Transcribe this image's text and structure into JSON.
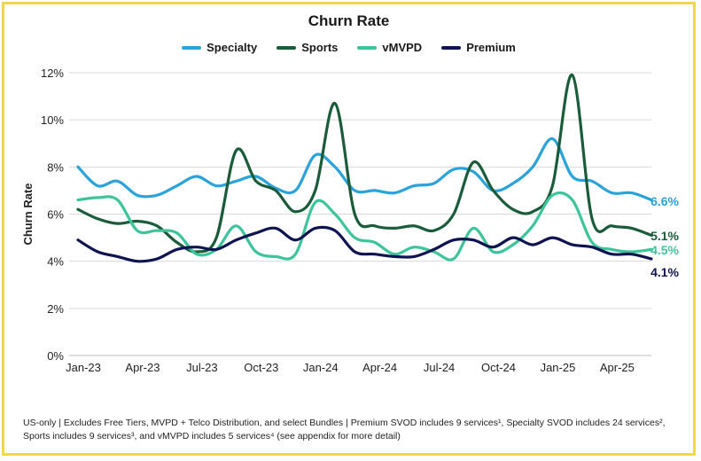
{
  "chart_data": {
    "type": "line",
    "title": "Churn Rate",
    "ylabel": "Churn Rate",
    "xlabel": "",
    "ylim": [
      0,
      12
    ],
    "yticks": [
      0,
      2,
      4,
      6,
      8,
      10,
      12
    ],
    "ytick_labels": [
      "0%",
      "2%",
      "4%",
      "6%",
      "8%",
      "10%",
      "12%"
    ],
    "x_tick_labels": [
      "Jan-23",
      "Apr-23",
      "Jul-23",
      "Oct-23",
      "Jan-24",
      "Apr-24",
      "Jul-24",
      "Oct-24",
      "Jan-25",
      "Apr-25"
    ],
    "months": [
      "Jan-23",
      "Feb-23",
      "Mar-23",
      "Apr-23",
      "May-23",
      "Jun-23",
      "Jul-23",
      "Aug-23",
      "Sep-23",
      "Oct-23",
      "Nov-23",
      "Dec-23",
      "Jan-24",
      "Feb-24",
      "Mar-24",
      "Apr-24",
      "May-24",
      "Jun-24",
      "Jul-24",
      "Aug-24",
      "Sep-24",
      "Oct-24",
      "Nov-24",
      "Dec-24",
      "Jan-25",
      "Feb-25",
      "Mar-25",
      "Apr-25",
      "May-25",
      "Jun-25"
    ],
    "series": [
      {
        "name": "Specialty",
        "color": "#2aa3d9",
        "end_label": "6.6%",
        "values": [
          8.0,
          7.2,
          7.4,
          6.8,
          6.8,
          7.2,
          7.6,
          7.2,
          7.4,
          7.6,
          7.1,
          7.0,
          8.5,
          8.0,
          7.0,
          7.0,
          6.9,
          7.2,
          7.3,
          7.9,
          7.8,
          7.0,
          7.3,
          8.0,
          9.2,
          7.6,
          7.4,
          6.9,
          6.9,
          6.6
        ]
      },
      {
        "name": "Sports",
        "color": "#1a5c3a",
        "end_label": "5.1%",
        "values": [
          6.2,
          5.8,
          5.6,
          5.7,
          5.5,
          4.8,
          4.4,
          5.0,
          8.7,
          7.4,
          7.0,
          6.1,
          7.0,
          10.7,
          6.0,
          5.5,
          5.4,
          5.5,
          5.3,
          6.0,
          8.2,
          7.0,
          6.2,
          6.1,
          7.2,
          11.9,
          5.8,
          5.5,
          5.4,
          5.1
        ]
      },
      {
        "name": "vMVPD",
        "color": "#3dc49a",
        "end_label": "4.5%",
        "values": [
          6.6,
          6.7,
          6.6,
          5.3,
          5.3,
          5.2,
          4.3,
          4.5,
          5.5,
          4.4,
          4.2,
          4.3,
          6.5,
          6.0,
          5.0,
          4.8,
          4.3,
          4.6,
          4.4,
          4.1,
          5.4,
          4.4,
          4.7,
          5.5,
          6.8,
          6.6,
          4.8,
          4.5,
          4.4,
          4.5
        ]
      },
      {
        "name": "Premium",
        "color": "#0f1450",
        "end_label": "4.1%",
        "values": [
          4.9,
          4.4,
          4.2,
          4.0,
          4.1,
          4.5,
          4.6,
          4.5,
          4.9,
          5.2,
          5.4,
          4.9,
          5.4,
          5.3,
          4.4,
          4.3,
          4.2,
          4.2,
          4.5,
          4.9,
          4.9,
          4.6,
          5.0,
          4.7,
          5.0,
          4.7,
          4.6,
          4.3,
          4.3,
          4.1
        ]
      }
    ]
  },
  "footnote": "US-only | Excludes Free Tiers, MVPD + Telco Distribution, and select Bundles | Premium SVOD includes 9 services¹, Specialty SVOD includes 24 services², Sports includes 9 services³, and vMVPD includes 5 services⁴ (see appendix for more detail)"
}
